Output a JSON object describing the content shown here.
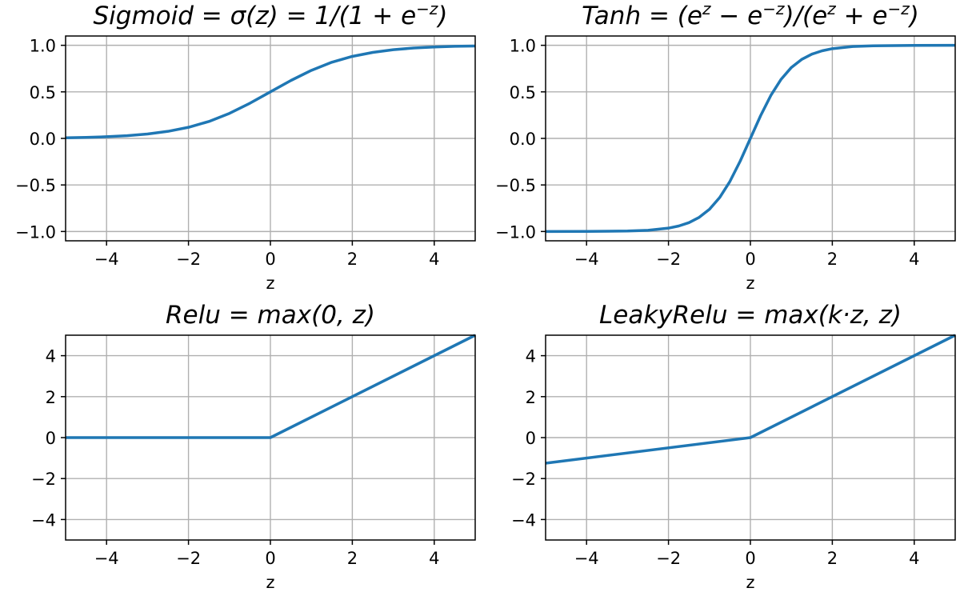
{
  "chart_data": [
    {
      "type": "line",
      "title_parts": [
        {
          "t": "Sigmoid"
        },
        {
          "t": " = σ(z) = 1/(1 + e"
        },
        {
          "t": "−z",
          "sup": true
        },
        {
          "t": ")"
        }
      ],
      "xlabel": "z",
      "ylabel": "",
      "xlim": [
        -5,
        5
      ],
      "ylim": [
        -1.1,
        1.1
      ],
      "xticks": [
        -4,
        -2,
        0,
        2,
        4
      ],
      "xtick_labels": [
        "−4",
        "−2",
        "0",
        "2",
        "4"
      ],
      "yticks": [
        -1.0,
        -0.5,
        0.0,
        0.5,
        1.0
      ],
      "ytick_labels": [
        "−1.0",
        "−0.5",
        "0.0",
        "0.5",
        "1.0"
      ],
      "grid": true,
      "series": [
        {
          "color": "#1f77b4",
          "x": [
            -5,
            -4.5,
            -4,
            -3.5,
            -3,
            -2.5,
            -2,
            -1.5,
            -1,
            -0.5,
            0,
            0.5,
            1,
            1.5,
            2,
            2.5,
            3,
            3.5,
            4,
            4.5,
            5
          ],
          "y": [
            0.007,
            0.011,
            0.018,
            0.029,
            0.047,
            0.076,
            0.119,
            0.182,
            0.269,
            0.378,
            0.5,
            0.622,
            0.731,
            0.818,
            0.881,
            0.924,
            0.953,
            0.971,
            0.982,
            0.989,
            0.993
          ]
        }
      ]
    },
    {
      "type": "line",
      "title_parts": [
        {
          "t": "Tanh"
        },
        {
          "t": " = (e"
        },
        {
          "t": "z",
          "sup": true
        },
        {
          "t": " − e"
        },
        {
          "t": "−z",
          "sup": true
        },
        {
          "t": ")/(e"
        },
        {
          "t": "z",
          "sup": true
        },
        {
          "t": " + e"
        },
        {
          "t": "−z",
          "sup": true
        },
        {
          "t": ")"
        }
      ],
      "xlabel": "z",
      "ylabel": "",
      "xlim": [
        -5,
        5
      ],
      "ylim": [
        -1.1,
        1.1
      ],
      "xticks": [
        -4,
        -2,
        0,
        2,
        4
      ],
      "xtick_labels": [
        "−4",
        "−2",
        "0",
        "2",
        "4"
      ],
      "yticks": [
        -1.0,
        -0.5,
        0.0,
        0.5,
        1.0
      ],
      "ytick_labels": [
        "−1.0",
        "−0.5",
        "0.0",
        "0.5",
        "1.0"
      ],
      "grid": true,
      "series": [
        {
          "color": "#1f77b4",
          "x": [
            -5,
            -4,
            -3,
            -2.5,
            -2,
            -1.75,
            -1.5,
            -1.25,
            -1,
            -0.75,
            -0.5,
            -0.25,
            0,
            0.25,
            0.5,
            0.75,
            1,
            1.25,
            1.5,
            1.75,
            2,
            2.5,
            3,
            4,
            5
          ],
          "y": [
            -1.0,
            -0.999,
            -0.995,
            -0.987,
            -0.964,
            -0.941,
            -0.905,
            -0.848,
            -0.762,
            -0.635,
            -0.462,
            -0.245,
            0.0,
            0.245,
            0.462,
            0.635,
            0.762,
            0.848,
            0.905,
            0.941,
            0.964,
            0.987,
            0.995,
            0.999,
            1.0
          ]
        }
      ]
    },
    {
      "type": "line",
      "title_parts": [
        {
          "t": "Relu"
        },
        {
          "t": " = max(0, z)"
        }
      ],
      "xlabel": "z",
      "ylabel": "",
      "xlim": [
        -5,
        5
      ],
      "ylim": [
        -5,
        5
      ],
      "xticks": [
        -4,
        -2,
        0,
        2,
        4
      ],
      "xtick_labels": [
        "−4",
        "−2",
        "0",
        "2",
        "4"
      ],
      "yticks": [
        -4,
        -2,
        0,
        2,
        4
      ],
      "ytick_labels": [
        "−4",
        "−2",
        "0",
        "2",
        "4"
      ],
      "grid": true,
      "series": [
        {
          "color": "#1f77b4",
          "x": [
            -5,
            0,
            5
          ],
          "y": [
            0,
            0,
            5
          ]
        }
      ]
    },
    {
      "type": "line",
      "title_parts": [
        {
          "t": "LeakyRelu"
        },
        {
          "t": " = max(k·z, z)"
        }
      ],
      "xlabel": "z",
      "ylabel": "",
      "xlim": [
        -5,
        5
      ],
      "ylim": [
        -5,
        5
      ],
      "xticks": [
        -4,
        -2,
        0,
        2,
        4
      ],
      "xtick_labels": [
        "−4",
        "−2",
        "0",
        "2",
        "4"
      ],
      "yticks": [
        -4,
        -2,
        0,
        2,
        4
      ],
      "ytick_labels": [
        "−4",
        "−2",
        "0",
        "2",
        "4"
      ],
      "grid": true,
      "series": [
        {
          "color": "#1f77b4",
          "x": [
            -5,
            0,
            5
          ],
          "y": [
            -1.25,
            0,
            5
          ]
        }
      ]
    }
  ]
}
